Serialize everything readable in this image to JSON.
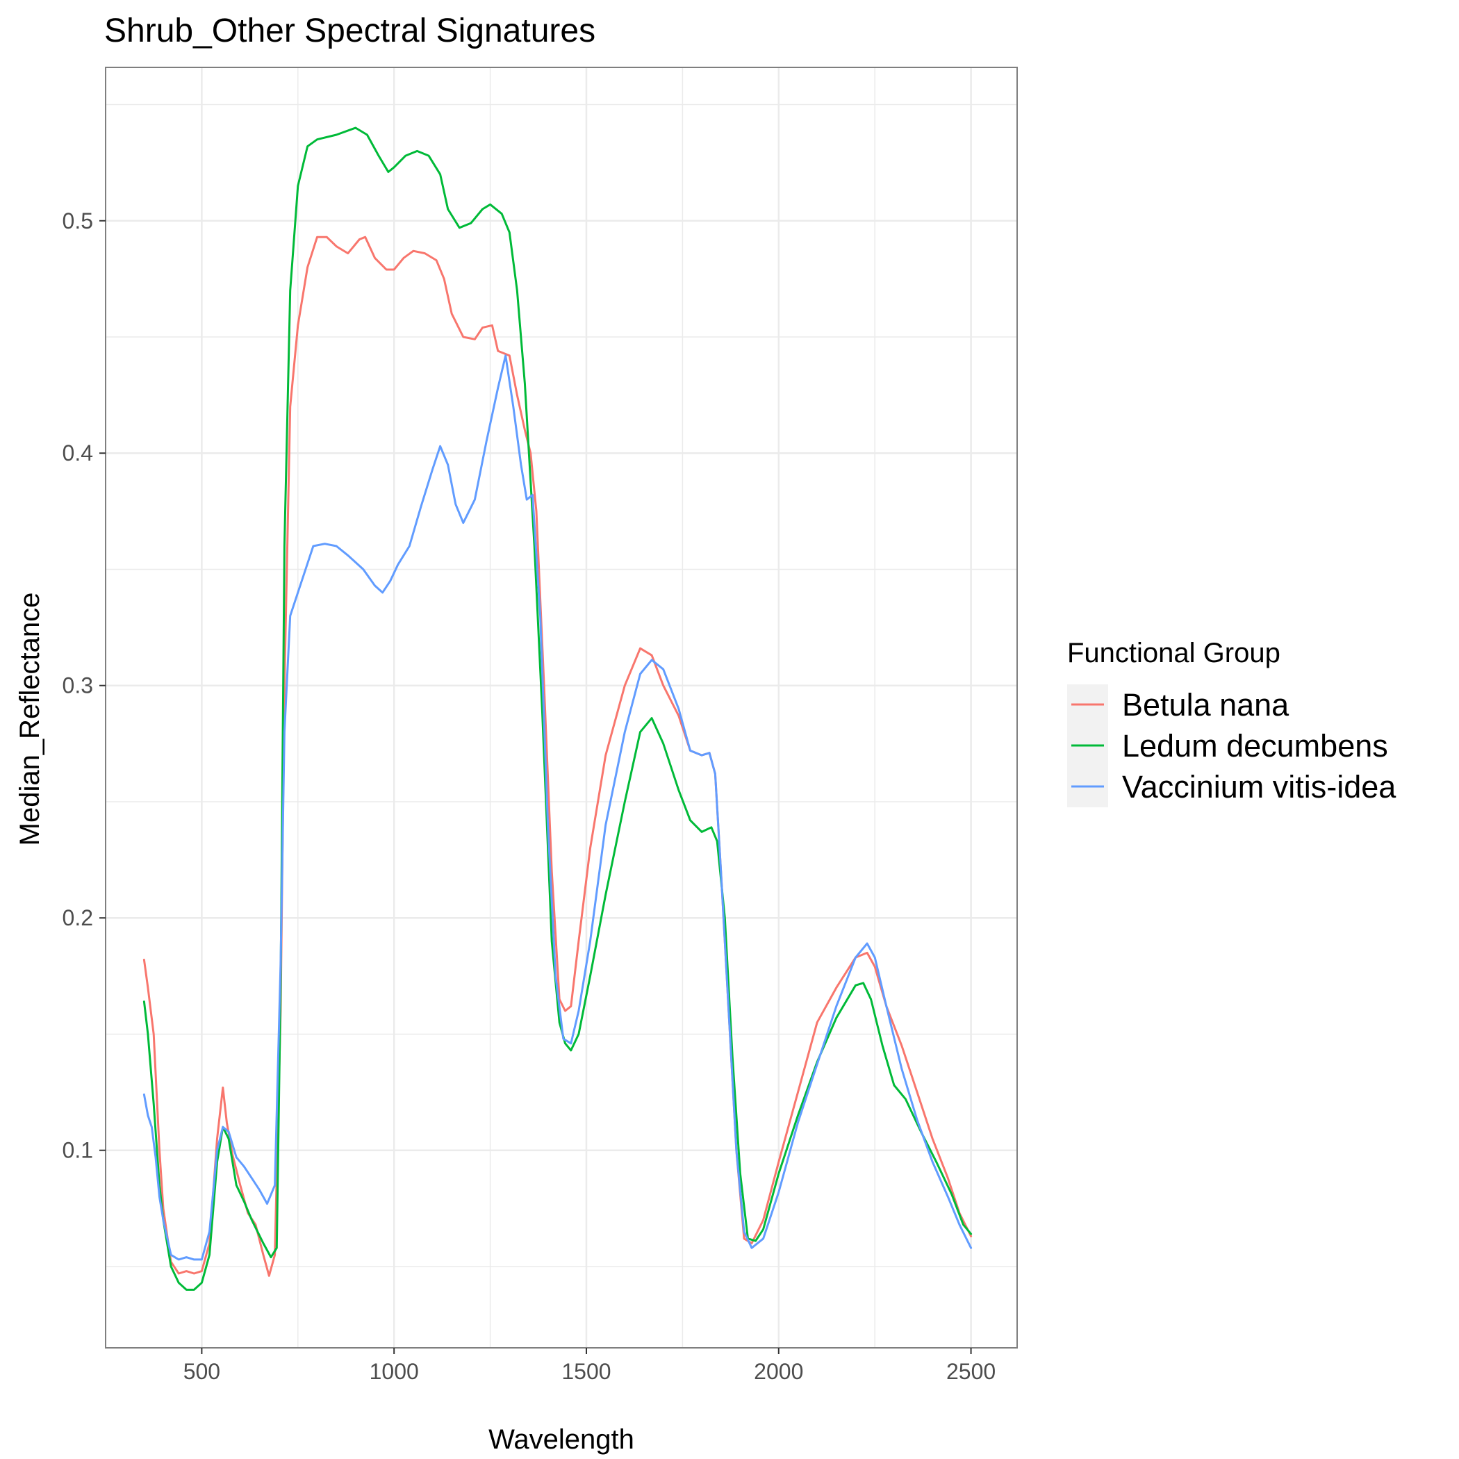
{
  "chart_data": {
    "type": "line",
    "title": "Shrub_Other Spectral Signatures",
    "xlabel": "Wavelength",
    "ylabel": "Median_Reflectance",
    "xlim": [
      250,
      2620
    ],
    "ylim": [
      0.015,
      0.566
    ],
    "xticks": [
      500,
      1000,
      1500,
      2000,
      2500
    ],
    "xtick_labels": [
      "500",
      "1000",
      "1500",
      "2000",
      "2500"
    ],
    "yticks": [
      0.1,
      0.2,
      0.3,
      0.4,
      0.5
    ],
    "ytick_labels": [
      "0.1",
      "0.2",
      "0.3",
      "0.4",
      "0.5"
    ],
    "grid": true,
    "legend": {
      "title": "Functional Group",
      "position": "right"
    },
    "series": [
      {
        "name": "Betula nana",
        "color": "#F8766D",
        "points": [
          [
            350,
            0.182
          ],
          [
            360,
            0.17
          ],
          [
            375,
            0.15
          ],
          [
            390,
            0.1
          ],
          [
            400,
            0.075
          ],
          [
            420,
            0.052
          ],
          [
            440,
            0.047
          ],
          [
            460,
            0.048
          ],
          [
            480,
            0.047
          ],
          [
            500,
            0.048
          ],
          [
            520,
            0.06
          ],
          [
            540,
            0.105
          ],
          [
            555,
            0.127
          ],
          [
            565,
            0.112
          ],
          [
            580,
            0.098
          ],
          [
            600,
            0.085
          ],
          [
            620,
            0.073
          ],
          [
            640,
            0.068
          ],
          [
            660,
            0.055
          ],
          [
            675,
            0.046
          ],
          [
            690,
            0.055
          ],
          [
            705,
            0.16
          ],
          [
            715,
            0.3
          ],
          [
            730,
            0.42
          ],
          [
            750,
            0.455
          ],
          [
            775,
            0.48
          ],
          [
            800,
            0.493
          ],
          [
            825,
            0.493
          ],
          [
            850,
            0.489
          ],
          [
            880,
            0.486
          ],
          [
            910,
            0.492
          ],
          [
            925,
            0.493
          ],
          [
            950,
            0.484
          ],
          [
            980,
            0.479
          ],
          [
            1000,
            0.479
          ],
          [
            1025,
            0.484
          ],
          [
            1050,
            0.487
          ],
          [
            1080,
            0.486
          ],
          [
            1110,
            0.483
          ],
          [
            1130,
            0.475
          ],
          [
            1150,
            0.46
          ],
          [
            1180,
            0.45
          ],
          [
            1210,
            0.449
          ],
          [
            1230,
            0.454
          ],
          [
            1255,
            0.455
          ],
          [
            1270,
            0.444
          ],
          [
            1300,
            0.442
          ],
          [
            1320,
            0.425
          ],
          [
            1340,
            0.41
          ],
          [
            1355,
            0.4
          ],
          [
            1370,
            0.375
          ],
          [
            1390,
            0.3
          ],
          [
            1410,
            0.22
          ],
          [
            1430,
            0.165
          ],
          [
            1445,
            0.16
          ],
          [
            1460,
            0.162
          ],
          [
            1480,
            0.19
          ],
          [
            1510,
            0.23
          ],
          [
            1550,
            0.27
          ],
          [
            1600,
            0.3
          ],
          [
            1640,
            0.316
          ],
          [
            1670,
            0.313
          ],
          [
            1700,
            0.3
          ],
          [
            1740,
            0.287
          ],
          [
            1770,
            0.272
          ],
          [
            1800,
            0.27
          ],
          [
            1820,
            0.271
          ],
          [
            1835,
            0.262
          ],
          [
            1850,
            0.22
          ],
          [
            1870,
            0.16
          ],
          [
            1890,
            0.1
          ],
          [
            1910,
            0.062
          ],
          [
            1930,
            0.06
          ],
          [
            1960,
            0.07
          ],
          [
            2000,
            0.095
          ],
          [
            2050,
            0.125
          ],
          [
            2100,
            0.155
          ],
          [
            2150,
            0.17
          ],
          [
            2200,
            0.183
          ],
          [
            2230,
            0.185
          ],
          [
            2250,
            0.179
          ],
          [
            2280,
            0.162
          ],
          [
            2320,
            0.145
          ],
          [
            2360,
            0.125
          ],
          [
            2400,
            0.105
          ],
          [
            2440,
            0.088
          ],
          [
            2470,
            0.073
          ],
          [
            2500,
            0.063
          ]
        ]
      },
      {
        "name": "Ledum decumbens",
        "color": "#00BA38",
        "points": [
          [
            350,
            0.164
          ],
          [
            360,
            0.15
          ],
          [
            375,
            0.12
          ],
          [
            390,
            0.085
          ],
          [
            400,
            0.07
          ],
          [
            420,
            0.05
          ],
          [
            440,
            0.043
          ],
          [
            460,
            0.04
          ],
          [
            480,
            0.04
          ],
          [
            500,
            0.043
          ],
          [
            520,
            0.055
          ],
          [
            540,
            0.095
          ],
          [
            555,
            0.11
          ],
          [
            570,
            0.105
          ],
          [
            590,
            0.085
          ],
          [
            610,
            0.078
          ],
          [
            630,
            0.07
          ],
          [
            660,
            0.06
          ],
          [
            680,
            0.054
          ],
          [
            695,
            0.058
          ],
          [
            705,
            0.17
          ],
          [
            715,
            0.36
          ],
          [
            730,
            0.47
          ],
          [
            750,
            0.515
          ],
          [
            775,
            0.532
          ],
          [
            800,
            0.535
          ],
          [
            850,
            0.537
          ],
          [
            900,
            0.54
          ],
          [
            930,
            0.537
          ],
          [
            960,
            0.528
          ],
          [
            985,
            0.521
          ],
          [
            1000,
            0.523
          ],
          [
            1030,
            0.528
          ],
          [
            1060,
            0.53
          ],
          [
            1090,
            0.528
          ],
          [
            1120,
            0.52
          ],
          [
            1140,
            0.505
          ],
          [
            1170,
            0.497
          ],
          [
            1200,
            0.499
          ],
          [
            1230,
            0.505
          ],
          [
            1250,
            0.507
          ],
          [
            1280,
            0.503
          ],
          [
            1300,
            0.495
          ],
          [
            1320,
            0.47
          ],
          [
            1340,
            0.43
          ],
          [
            1365,
            0.36
          ],
          [
            1385,
            0.29
          ],
          [
            1410,
            0.19
          ],
          [
            1430,
            0.155
          ],
          [
            1445,
            0.146
          ],
          [
            1460,
            0.143
          ],
          [
            1480,
            0.15
          ],
          [
            1510,
            0.175
          ],
          [
            1550,
            0.21
          ],
          [
            1600,
            0.25
          ],
          [
            1640,
            0.28
          ],
          [
            1670,
            0.286
          ],
          [
            1700,
            0.275
          ],
          [
            1740,
            0.255
          ],
          [
            1770,
            0.242
          ],
          [
            1800,
            0.237
          ],
          [
            1825,
            0.239
          ],
          [
            1840,
            0.233
          ],
          [
            1860,
            0.2
          ],
          [
            1880,
            0.14
          ],
          [
            1900,
            0.09
          ],
          [
            1920,
            0.062
          ],
          [
            1940,
            0.061
          ],
          [
            1960,
            0.066
          ],
          [
            2000,
            0.09
          ],
          [
            2050,
            0.115
          ],
          [
            2100,
            0.138
          ],
          [
            2150,
            0.157
          ],
          [
            2200,
            0.171
          ],
          [
            2220,
            0.172
          ],
          [
            2240,
            0.165
          ],
          [
            2270,
            0.145
          ],
          [
            2300,
            0.128
          ],
          [
            2330,
            0.122
          ],
          [
            2370,
            0.108
          ],
          [
            2410,
            0.095
          ],
          [
            2450,
            0.081
          ],
          [
            2480,
            0.068
          ],
          [
            2500,
            0.064
          ]
        ]
      },
      {
        "name": "Vaccinium vitis-idea",
        "color": "#619CFF",
        "points": [
          [
            350,
            0.124
          ],
          [
            360,
            0.115
          ],
          [
            370,
            0.11
          ],
          [
            380,
            0.097
          ],
          [
            390,
            0.08
          ],
          [
            400,
            0.07
          ],
          [
            420,
            0.055
          ],
          [
            440,
            0.053
          ],
          [
            460,
            0.054
          ],
          [
            480,
            0.053
          ],
          [
            500,
            0.053
          ],
          [
            520,
            0.065
          ],
          [
            540,
            0.1
          ],
          [
            555,
            0.11
          ],
          [
            570,
            0.108
          ],
          [
            590,
            0.097
          ],
          [
            610,
            0.093
          ],
          [
            630,
            0.088
          ],
          [
            650,
            0.083
          ],
          [
            670,
            0.077
          ],
          [
            690,
            0.085
          ],
          [
            705,
            0.18
          ],
          [
            715,
            0.28
          ],
          [
            730,
            0.33
          ],
          [
            760,
            0.345
          ],
          [
            790,
            0.36
          ],
          [
            820,
            0.361
          ],
          [
            850,
            0.36
          ],
          [
            880,
            0.356
          ],
          [
            920,
            0.35
          ],
          [
            950,
            0.343
          ],
          [
            970,
            0.34
          ],
          [
            990,
            0.345
          ],
          [
            1010,
            0.352
          ],
          [
            1040,
            0.36
          ],
          [
            1070,
            0.377
          ],
          [
            1100,
            0.393
          ],
          [
            1120,
            0.403
          ],
          [
            1140,
            0.395
          ],
          [
            1160,
            0.378
          ],
          [
            1180,
            0.37
          ],
          [
            1210,
            0.38
          ],
          [
            1240,
            0.405
          ],
          [
            1270,
            0.428
          ],
          [
            1290,
            0.442
          ],
          [
            1310,
            0.42
          ],
          [
            1330,
            0.395
          ],
          [
            1345,
            0.38
          ],
          [
            1360,
            0.382
          ],
          [
            1380,
            0.33
          ],
          [
            1400,
            0.24
          ],
          [
            1420,
            0.175
          ],
          [
            1440,
            0.148
          ],
          [
            1460,
            0.146
          ],
          [
            1480,
            0.16
          ],
          [
            1510,
            0.19
          ],
          [
            1550,
            0.24
          ],
          [
            1600,
            0.28
          ],
          [
            1640,
            0.305
          ],
          [
            1670,
            0.311
          ],
          [
            1700,
            0.307
          ],
          [
            1740,
            0.29
          ],
          [
            1770,
            0.272
          ],
          [
            1800,
            0.27
          ],
          [
            1820,
            0.271
          ],
          [
            1835,
            0.262
          ],
          [
            1850,
            0.22
          ],
          [
            1870,
            0.16
          ],
          [
            1890,
            0.1
          ],
          [
            1910,
            0.065
          ],
          [
            1930,
            0.058
          ],
          [
            1960,
            0.062
          ],
          [
            2000,
            0.082
          ],
          [
            2050,
            0.112
          ],
          [
            2100,
            0.137
          ],
          [
            2150,
            0.162
          ],
          [
            2200,
            0.183
          ],
          [
            2230,
            0.189
          ],
          [
            2250,
            0.183
          ],
          [
            2280,
            0.162
          ],
          [
            2320,
            0.135
          ],
          [
            2360,
            0.113
          ],
          [
            2400,
            0.095
          ],
          [
            2440,
            0.08
          ],
          [
            2470,
            0.068
          ],
          [
            2500,
            0.058
          ]
        ]
      }
    ]
  }
}
